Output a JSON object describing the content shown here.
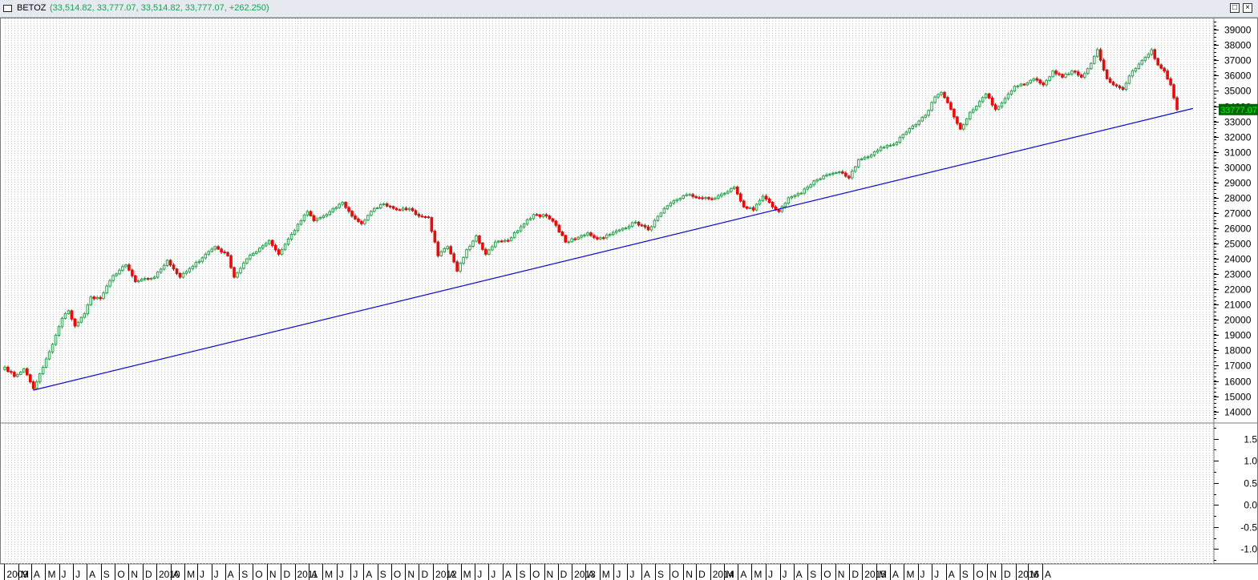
{
  "window": {
    "symbol": "BETOZ",
    "ohlc_text": "(33,514.82, 33,777.07, 33,514.82, 33,777.07, +262.250)",
    "maximize_icon": "maximize-icon",
    "close_icon": "close-icon"
  },
  "colors": {
    "up": "#27a24a",
    "down": "#ff0000",
    "trendline": "#0a0adc",
    "last_price_bg": "#006400",
    "last_price_fg": "#00ff00",
    "grid": "#c8c8c8"
  },
  "last_price_label": "33777.07",
  "chart_data": [
    {
      "type": "candlestick",
      "title": "BETOZ",
      "frequency": "weekly",
      "y_axis_ticks": [
        14000,
        15000,
        16000,
        17000,
        18000,
        19000,
        20000,
        21000,
        22000,
        23000,
        24000,
        25000,
        26000,
        27000,
        28000,
        29000,
        30000,
        31000,
        32000,
        33000,
        34000,
        35000,
        36000,
        37000,
        38000,
        39000
      ],
      "ylim": [
        13300,
        39800
      ],
      "x_axis_labels": [
        "2009",
        "M",
        "A",
        "M",
        "J",
        "J",
        "A",
        "S",
        "O",
        "N",
        "D",
        "2010",
        "A",
        "M",
        "J",
        "J",
        "A",
        "S",
        "O",
        "N",
        "D",
        "2011",
        "A",
        "M",
        "J",
        "J",
        "A",
        "S",
        "O",
        "N",
        "D",
        "2012",
        "A",
        "M",
        "J",
        "J",
        "A",
        "S",
        "O",
        "N",
        "D",
        "2013",
        "A",
        "M",
        "J",
        "J",
        "A",
        "S",
        "O",
        "N",
        "D",
        "2014",
        "M",
        "A",
        "M",
        "J",
        "J",
        "A",
        "S",
        "O",
        "N",
        "D",
        "2015",
        "M",
        "A",
        "M",
        "J",
        "J",
        "A",
        "S",
        "O",
        "N",
        "D",
        "2016",
        "M",
        "A"
      ],
      "grid": "vertical dotted",
      "anchors": [
        {
          "date": "2009-01-02",
          "close": 16900
        },
        {
          "date": "2009-01-23",
          "close": 16300
        },
        {
          "date": "2009-02-13",
          "close": 16800
        },
        {
          "date": "2009-03-06",
          "close": 15500
        },
        {
          "date": "2009-03-27",
          "close": 16900
        },
        {
          "date": "2009-04-17",
          "close": 18400
        },
        {
          "date": "2009-05-08",
          "close": 20100
        },
        {
          "date": "2009-05-22",
          "close": 20600
        },
        {
          "date": "2009-06-05",
          "close": 19600
        },
        {
          "date": "2009-06-26",
          "close": 20400
        },
        {
          "date": "2009-07-10",
          "close": 21500
        },
        {
          "date": "2009-07-31",
          "close": 21400
        },
        {
          "date": "2009-08-28",
          "close": 22900
        },
        {
          "date": "2009-09-25",
          "close": 23600
        },
        {
          "date": "2009-10-16",
          "close": 22500
        },
        {
          "date": "2009-11-27",
          "close": 22800
        },
        {
          "date": "2009-12-25",
          "close": 23900
        },
        {
          "date": "2010-01-22",
          "close": 22800
        },
        {
          "date": "2010-02-19",
          "close": 23500
        },
        {
          "date": "2010-03-19",
          "close": 24300
        },
        {
          "date": "2010-04-09",
          "close": 24800
        },
        {
          "date": "2010-05-07",
          "close": 24200
        },
        {
          "date": "2010-05-21",
          "close": 22800
        },
        {
          "date": "2010-06-18",
          "close": 24000
        },
        {
          "date": "2010-07-16",
          "close": 24700
        },
        {
          "date": "2010-08-06",
          "close": 25200
        },
        {
          "date": "2010-08-27",
          "close": 24300
        },
        {
          "date": "2010-09-24",
          "close": 25600
        },
        {
          "date": "2010-10-29",
          "close": 27100
        },
        {
          "date": "2010-11-12",
          "close": 26500
        },
        {
          "date": "2010-12-10",
          "close": 26900
        },
        {
          "date": "2011-01-14",
          "close": 27700
        },
        {
          "date": "2011-02-04",
          "close": 26800
        },
        {
          "date": "2011-02-25",
          "close": 26300
        },
        {
          "date": "2011-03-25",
          "close": 27300
        },
        {
          "date": "2011-04-15",
          "close": 27600
        },
        {
          "date": "2011-05-20",
          "close": 27200
        },
        {
          "date": "2011-06-10",
          "close": 27300
        },
        {
          "date": "2011-07-01",
          "close": 26800
        },
        {
          "date": "2011-07-22",
          "close": 26700
        },
        {
          "date": "2011-08-12",
          "close": 24200
        },
        {
          "date": "2011-09-02",
          "close": 24800
        },
        {
          "date": "2011-09-23",
          "close": 23200
        },
        {
          "date": "2011-10-14",
          "close": 24600
        },
        {
          "date": "2011-11-04",
          "close": 25500
        },
        {
          "date": "2011-11-25",
          "close": 24300
        },
        {
          "date": "2011-12-16",
          "close": 25100
        },
        {
          "date": "2012-01-13",
          "close": 25200
        },
        {
          "date": "2012-02-10",
          "close": 26100
        },
        {
          "date": "2012-03-09",
          "close": 26900
        },
        {
          "date": "2012-04-06",
          "close": 26800
        },
        {
          "date": "2012-04-27",
          "close": 26200
        },
        {
          "date": "2012-05-18",
          "close": 25100
        },
        {
          "date": "2012-06-08",
          "close": 25300
        },
        {
          "date": "2012-07-06",
          "close": 25700
        },
        {
          "date": "2012-07-27",
          "close": 25300
        },
        {
          "date": "2012-08-24",
          "close": 25600
        },
        {
          "date": "2012-09-21",
          "close": 26000
        },
        {
          "date": "2012-10-19",
          "close": 26400
        },
        {
          "date": "2012-11-16",
          "close": 25900
        },
        {
          "date": "2012-12-14",
          "close": 27000
        },
        {
          "date": "2013-01-11",
          "close": 27800
        },
        {
          "date": "2013-02-08",
          "close": 28200
        },
        {
          "date": "2013-03-08",
          "close": 28000
        },
        {
          "date": "2013-04-05",
          "close": 27900
        },
        {
          "date": "2013-05-03",
          "close": 28300
        },
        {
          "date": "2013-05-24",
          "close": 28700
        },
        {
          "date": "2013-06-14",
          "close": 27400
        },
        {
          "date": "2013-07-05",
          "close": 27200
        },
        {
          "date": "2013-07-26",
          "close": 28100
        },
        {
          "date": "2013-08-16",
          "close": 27400
        },
        {
          "date": "2013-08-30",
          "close": 27100
        },
        {
          "date": "2013-09-20",
          "close": 28000
        },
        {
          "date": "2013-10-18",
          "close": 28300
        },
        {
          "date": "2013-11-15",
          "close": 29100
        },
        {
          "date": "2013-12-13",
          "close": 29500
        },
        {
          "date": "2014-01-10",
          "close": 29700
        },
        {
          "date": "2014-01-31",
          "close": 29300
        },
        {
          "date": "2014-02-21",
          "close": 30500
        },
        {
          "date": "2014-03-21",
          "close": 30800
        },
        {
          "date": "2014-04-11",
          "close": 31300
        },
        {
          "date": "2014-05-09",
          "close": 31500
        },
        {
          "date": "2014-06-06",
          "close": 32300
        },
        {
          "date": "2014-06-27",
          "close": 32800
        },
        {
          "date": "2014-07-18",
          "close": 33400
        },
        {
          "date": "2014-08-08",
          "close": 34600
        },
        {
          "date": "2014-08-22",
          "close": 34900
        },
        {
          "date": "2014-09-12",
          "close": 33800
        },
        {
          "date": "2014-10-03",
          "close": 32500
        },
        {
          "date": "2014-10-24",
          "close": 33600
        },
        {
          "date": "2014-11-14",
          "close": 34300
        },
        {
          "date": "2014-11-28",
          "close": 34800
        },
        {
          "date": "2014-12-19",
          "close": 33800
        },
        {
          "date": "2015-01-09",
          "close": 34500
        },
        {
          "date": "2015-01-30",
          "close": 35300
        },
        {
          "date": "2015-02-20",
          "close": 35400
        },
        {
          "date": "2015-03-13",
          "close": 35800
        },
        {
          "date": "2015-04-03",
          "close": 35400
        },
        {
          "date": "2015-04-24",
          "close": 36300
        },
        {
          "date": "2015-05-15",
          "close": 35900
        },
        {
          "date": "2015-06-05",
          "close": 36300
        },
        {
          "date": "2015-06-26",
          "close": 35900
        },
        {
          "date": "2015-07-17",
          "close": 36800
        },
        {
          "date": "2015-07-31",
          "close": 37700
        },
        {
          "date": "2015-08-21",
          "close": 35800
        },
        {
          "date": "2015-09-04",
          "close": 35400
        },
        {
          "date": "2015-09-25",
          "close": 35100
        },
        {
          "date": "2015-10-16",
          "close": 36300
        },
        {
          "date": "2015-11-06",
          "close": 37000
        },
        {
          "date": "2015-11-27",
          "close": 37700
        },
        {
          "date": "2015-12-11",
          "close": 36700
        },
        {
          "date": "2015-12-25",
          "close": 36300
        },
        {
          "date": "2016-01-08",
          "close": 35400
        },
        {
          "date": "2016-01-22",
          "close": 33777
        }
      ],
      "trendline": {
        "start": {
          "date": "2009-03-06",
          "value": 15400
        },
        "end": {
          "date": "2016-02-26",
          "value": 33850
        }
      }
    },
    {
      "type": "line",
      "title": "",
      "y_axis_ticks": [
        -1.0,
        -0.5,
        0.0,
        0.5,
        1.0,
        1.5
      ],
      "y_axis_tick_labels": [
        "-1.0",
        "-0.5",
        "0.0",
        "0.5",
        "1.0",
        "1.5"
      ],
      "ylim": [
        -1.3,
        1.8
      ],
      "series": []
    }
  ]
}
